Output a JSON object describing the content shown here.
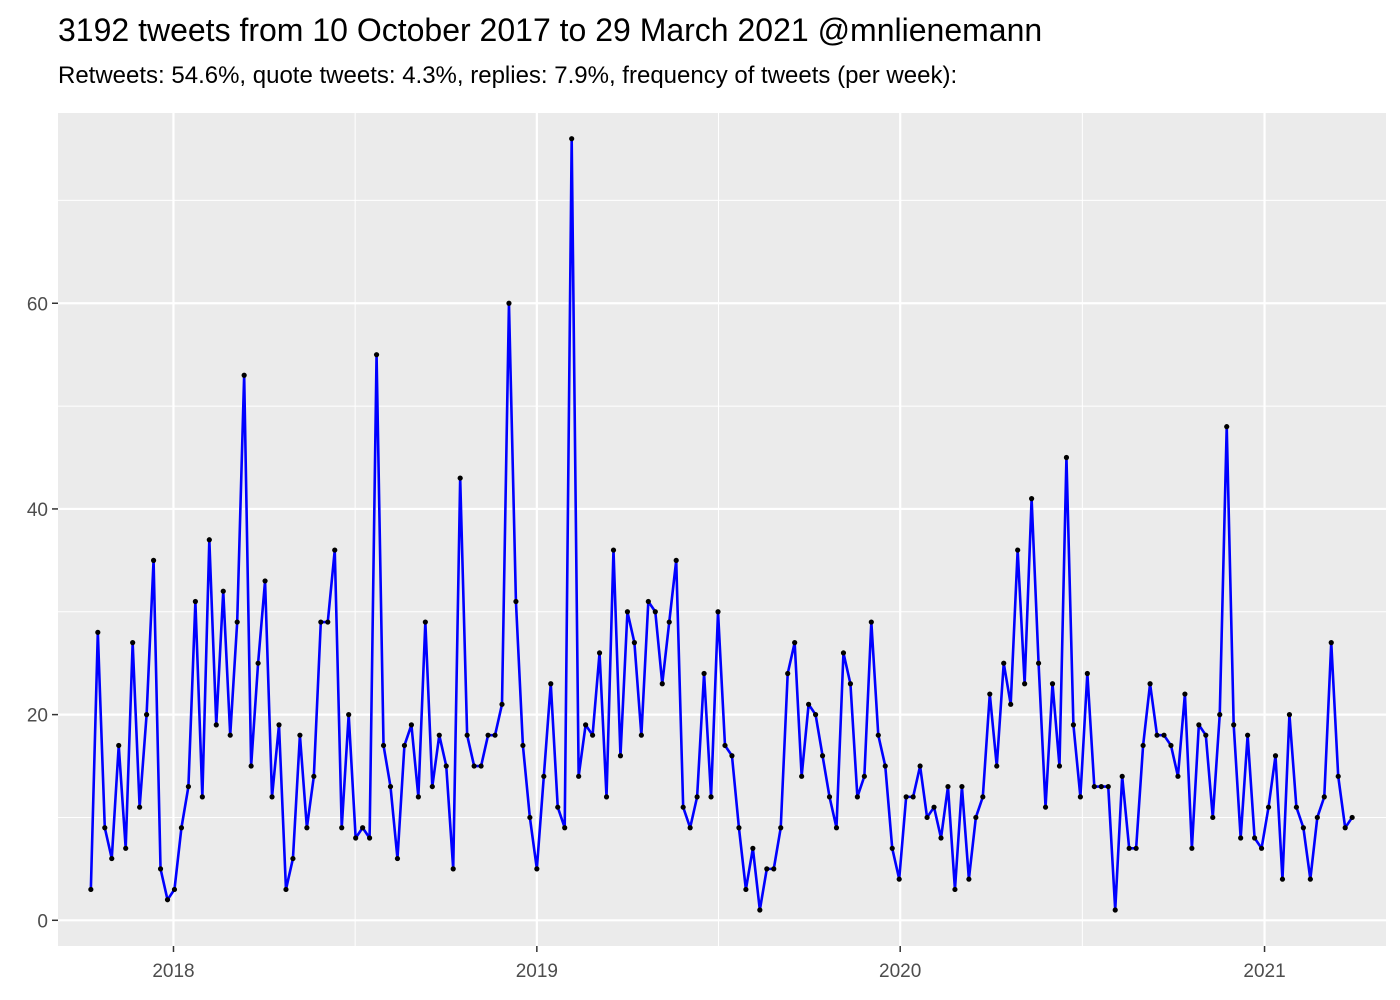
{
  "chart_data": {
    "type": "line",
    "title": "3192 tweets from 10 October 2017 to 29 March 2021 @mnlienemann",
    "subtitle": "Retweets: 54.6%, quote tweets: 4.3%, replies: 7.9%, frequency of tweets (per week):",
    "xlabel": "",
    "ylabel": "",
    "x_start": "2017-10-10",
    "x_step": "1 week",
    "xlim": [
      "2017-09-07",
      "2021-05-03"
    ],
    "ylim": [
      -2.5,
      78.5
    ],
    "x_ticks": [
      {
        "label": "2018",
        "date": "2018-01-01"
      },
      {
        "label": "2019",
        "date": "2019-01-01"
      },
      {
        "label": "2020",
        "date": "2020-01-01"
      },
      {
        "label": "2021",
        "date": "2021-01-01"
      }
    ],
    "y_ticks": [
      0,
      20,
      40,
      60
    ],
    "grid": true,
    "legend": "none",
    "colors": {
      "line": "#0000ff",
      "point": "#000000",
      "panel": "#ebebeb",
      "grid": "#ffffff",
      "tick_text": "#4d4d4d"
    },
    "series": [
      {
        "values": [
          3,
          28,
          9,
          6,
          17,
          7,
          27,
          11,
          20,
          35,
          5,
          2,
          3,
          9,
          13,
          31,
          12,
          37,
          19,
          32,
          18,
          29,
          53,
          15,
          25,
          33,
          12,
          19,
          3,
          6,
          18,
          9,
          14,
          29,
          29,
          36,
          9,
          20,
          8,
          9,
          8,
          55,
          17,
          13,
          6,
          17,
          19,
          12,
          29,
          13,
          18,
          15,
          5,
          43,
          18,
          15,
          15,
          18,
          18,
          21,
          60,
          31,
          17,
          10,
          5,
          14,
          23,
          11,
          9,
          76,
          14,
          19,
          18,
          26,
          12,
          36,
          16,
          30,
          27,
          18,
          31,
          30,
          23,
          29,
          35,
          11,
          9,
          12,
          24,
          12,
          30,
          17,
          16,
          9,
          3,
          7,
          1,
          5,
          5,
          9,
          24,
          27,
          14,
          21,
          20,
          16,
          12,
          9,
          26,
          23,
          12,
          14,
          29,
          18,
          15,
          7,
          4,
          12,
          12,
          15,
          10,
          11,
          8,
          13,
          3,
          13,
          4,
          10,
          12,
          22,
          15,
          25,
          21,
          36,
          23,
          41,
          25,
          11,
          23,
          15,
          45,
          19,
          12,
          24,
          13,
          13,
          13,
          1,
          14,
          7,
          7,
          17,
          23,
          18,
          18,
          17,
          14,
          22,
          7,
          19,
          18,
          10,
          20,
          48,
          19,
          8,
          18,
          8,
          7,
          11,
          16,
          4,
          20,
          11,
          9,
          4,
          10,
          12,
          27,
          14,
          9,
          10
        ]
      }
    ]
  }
}
